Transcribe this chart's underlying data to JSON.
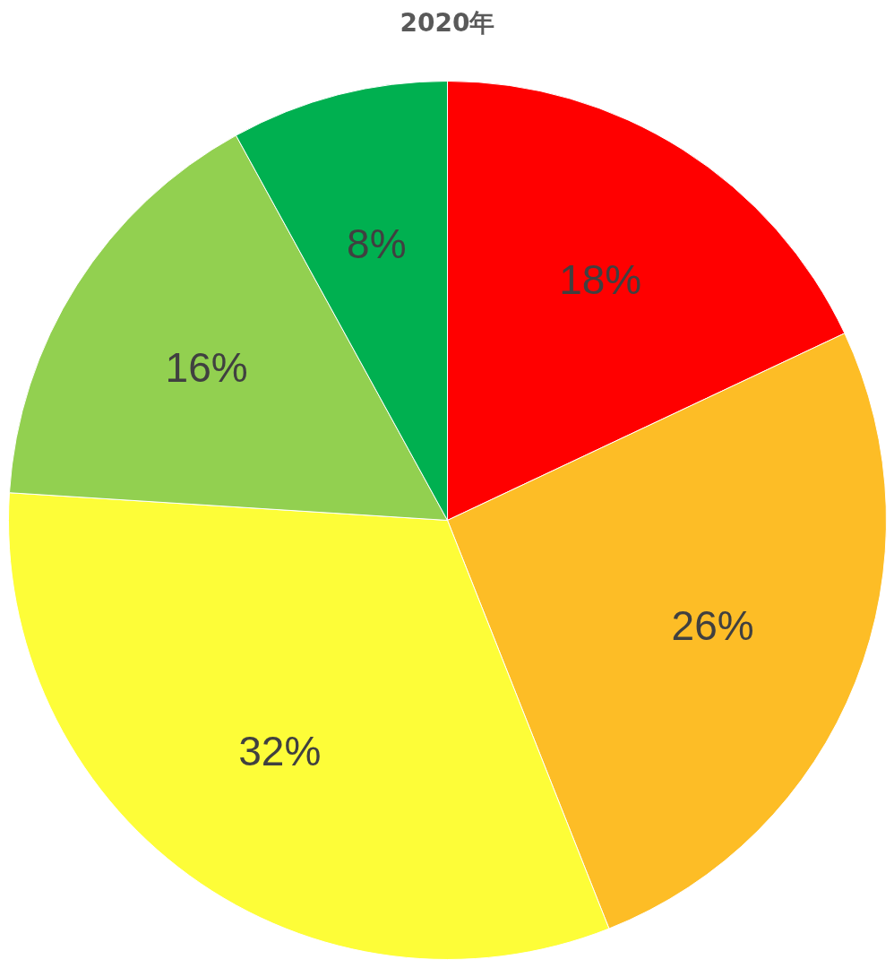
{
  "chart_data": {
    "type": "pie",
    "title": "2020年",
    "categories": [
      null,
      null,
      null,
      null,
      null
    ],
    "values": [
      18,
      26,
      32,
      16,
      8
    ],
    "colors": [
      "#ff0000",
      "#fdbd26",
      "#fdfd38",
      "#92d050",
      "#00b050"
    ],
    "value_labels": [
      "18%",
      "26%",
      "32%",
      "16%",
      "8%"
    ]
  }
}
